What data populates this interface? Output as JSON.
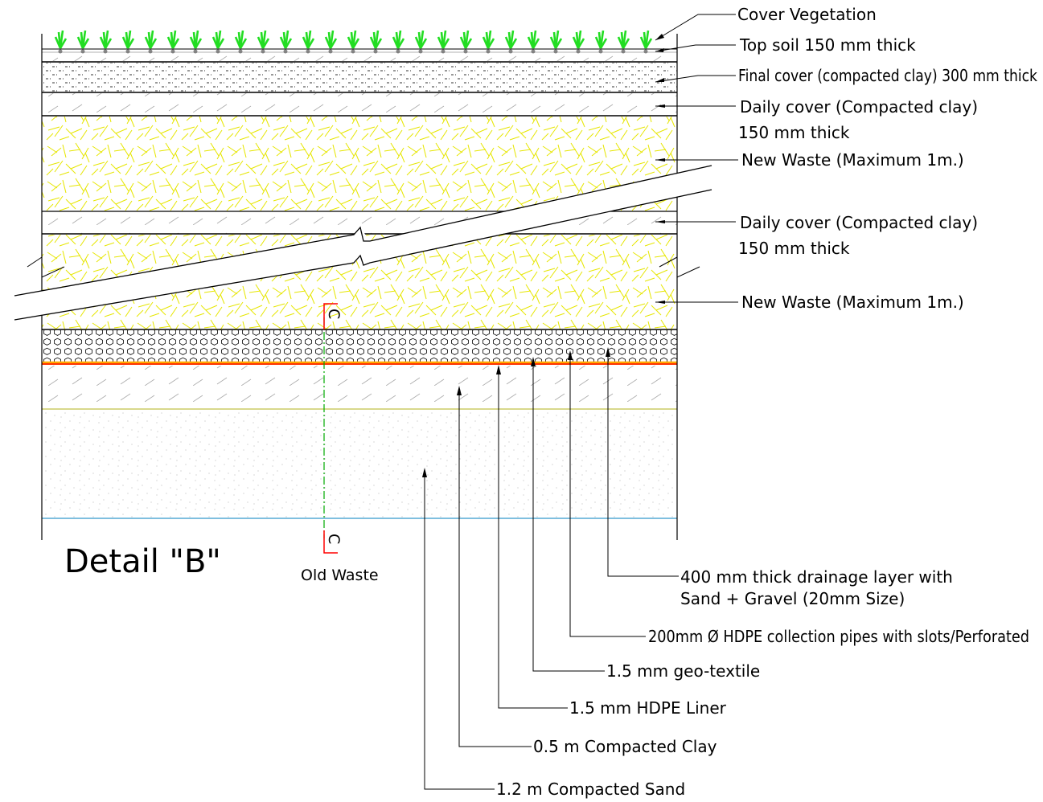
{
  "title": "Detail \"B\"",
  "section_mark": "C",
  "bottom_label": "Old Waste",
  "colors": {
    "vegetation": "#22dd22",
    "waste": "#e6e600",
    "liner": "#ff3300",
    "geotextile": "#ffaa00",
    "section": "#ff0000",
    "centerline": "#00aa00",
    "base_line": "#3399cc",
    "sand_line": "#cccc66"
  },
  "top_labels": [
    {
      "id": "cover-vegetation",
      "lines": [
        "Cover Vegetation"
      ]
    },
    {
      "id": "top-soil",
      "lines": [
        "Top soil 150 mm thick"
      ]
    },
    {
      "id": "final-cover",
      "lines": [
        "Final cover (compacted clay) 300 mm thick"
      ]
    },
    {
      "id": "daily-cover-1",
      "lines": [
        "Daily cover (Compacted clay)",
        "150 mm thick"
      ]
    },
    {
      "id": "new-waste-1",
      "lines": [
        "New Waste (Maximum 1m.)"
      ]
    },
    {
      "id": "daily-cover-2",
      "lines": [
        "Daily cover (Compacted clay)",
        "150 mm thick"
      ]
    },
    {
      "id": "new-waste-2",
      "lines": [
        "New Waste (Maximum 1m.)"
      ]
    }
  ],
  "bottom_labels": [
    {
      "id": "drainage-layer",
      "lines": [
        "400 mm thick drainage layer with",
        "Sand + Gravel (20mm Size)"
      ]
    },
    {
      "id": "hdpe-pipes",
      "lines": [
        "200mm Ø HDPE collection pipes with slots/Perforated"
      ]
    },
    {
      "id": "geo-textile",
      "lines": [
        "1.5 mm geo-textile"
      ]
    },
    {
      "id": "hdpe-liner",
      "lines": [
        "1.5 mm HDPE Liner"
      ]
    },
    {
      "id": "compacted-clay",
      "lines": [
        "0.5 m Compacted Clay"
      ]
    },
    {
      "id": "compacted-sand",
      "lines": [
        "1.2 m Compacted Sand"
      ]
    }
  ]
}
